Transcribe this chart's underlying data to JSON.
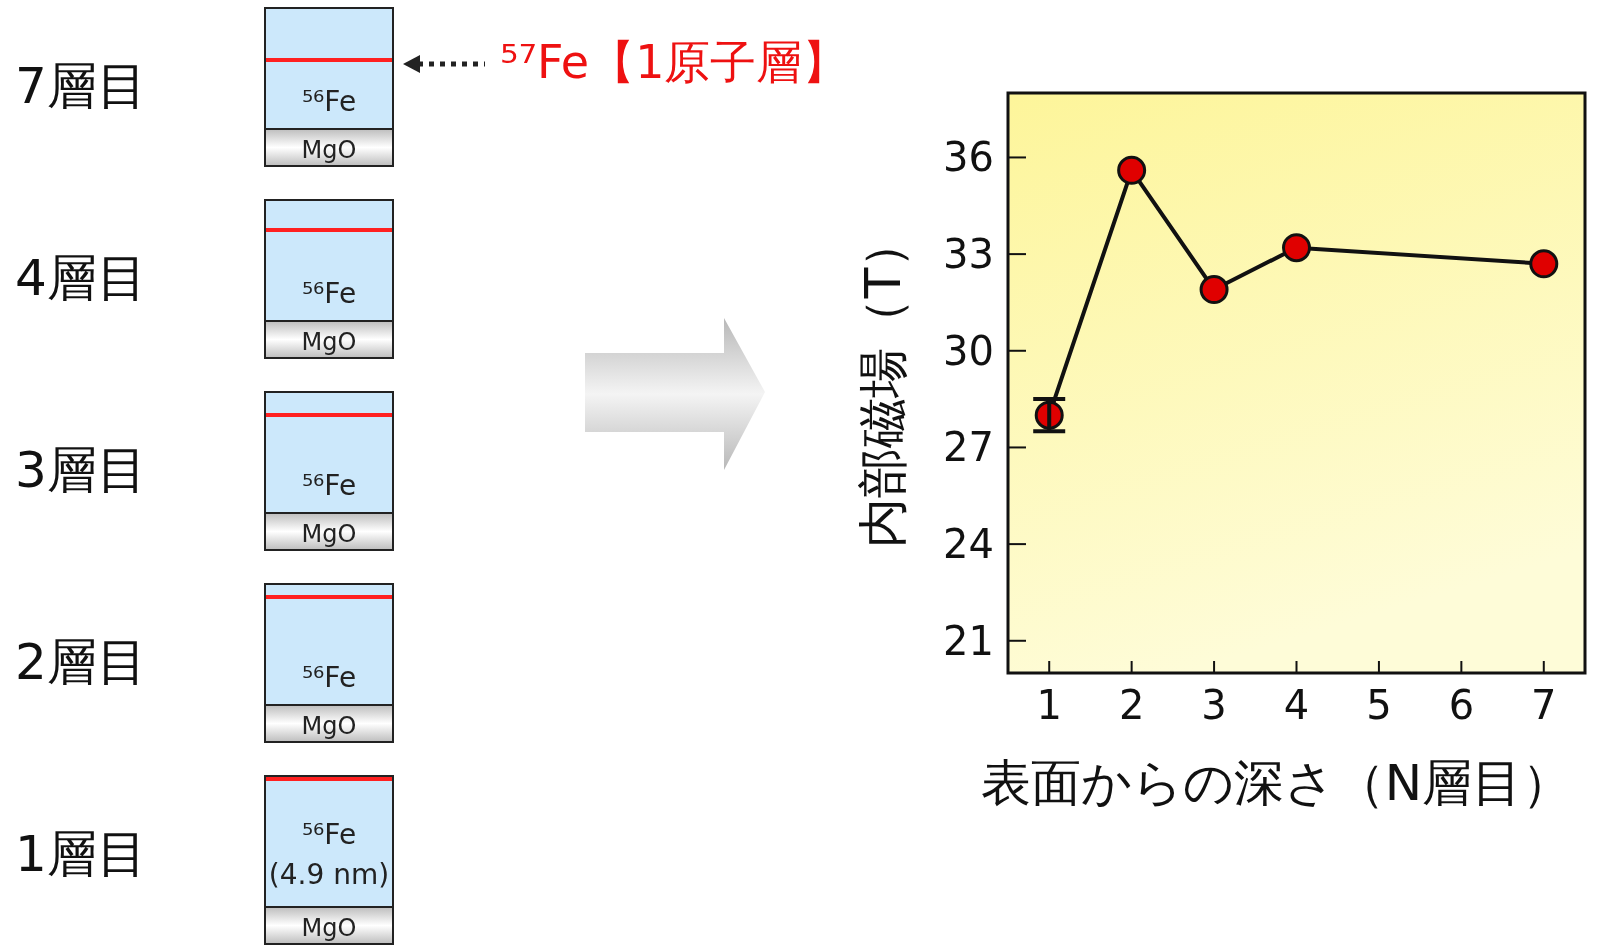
{
  "chart_data": {
    "type": "line",
    "xlabel": "表面からの深さ（N層目）",
    "ylabel": "内部磁場（T）",
    "x": [
      1,
      2,
      3,
      4,
      7
    ],
    "series": [
      {
        "color": "#e00000",
        "values": [
          28.0,
          35.6,
          31.9,
          33.2,
          32.7
        ],
        "errors": [
          0.5,
          null,
          null,
          null,
          null
        ]
      }
    ],
    "xlim": [
      0.5,
      7.5
    ],
    "xticks": [
      1,
      2,
      3,
      4,
      5,
      6,
      7
    ],
    "ylim": [
      20,
      38
    ],
    "yticks": [
      21,
      24,
      27,
      30,
      33,
      36
    ],
    "marker": "circle",
    "line_style": "solid",
    "grid": false,
    "annotations": [
      "7層目",
      "4層目",
      "3層目",
      "2層目",
      "1層目",
      "⁵⁶Fe",
      "⁵⁶Fe",
      "⁵⁶Fe",
      "⁵⁶Fe",
      "⁵⁶Fe",
      "MgO",
      "MgO",
      "MgO",
      "MgO",
      "MgO",
      "(4.9 nm)",
      "⁵⁷Fe【1原子層】"
    ]
  }
}
